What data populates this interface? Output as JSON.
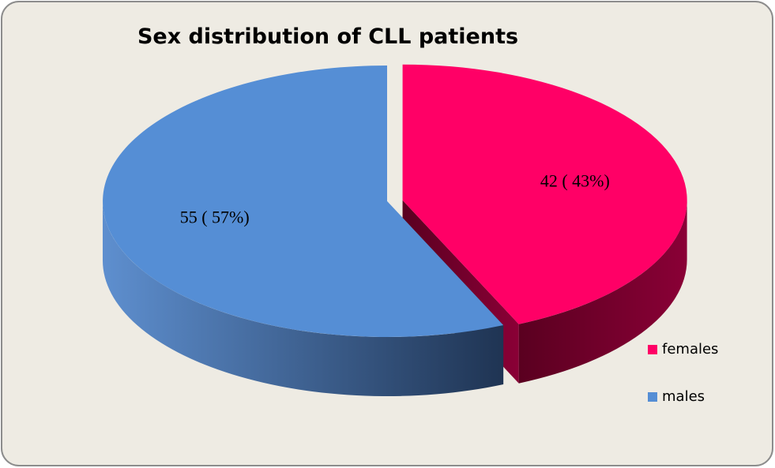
{
  "chart_data": {
    "type": "pie",
    "title": "Sex distribution of CLL patients",
    "categories": [
      "females",
      "males"
    ],
    "values": [
      42,
      55
    ],
    "value_labels": [
      "42 ( 43%)",
      "55  ( 57%)"
    ],
    "colors": [
      "#ff0066",
      "#558ed5"
    ],
    "legend": "right"
  }
}
